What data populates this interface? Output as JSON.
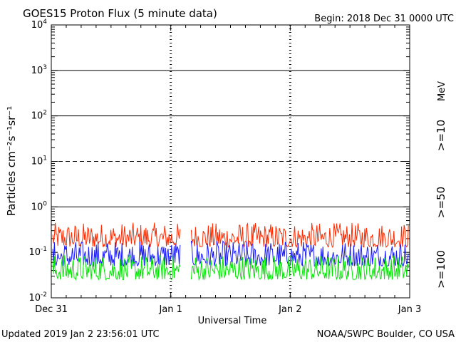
{
  "title": "GOES15 Proton Flux (5 minute data)",
  "begin_label": "Begin: 2018 Dec 31 0000 UTC",
  "updated_label": "Updated 2019 Jan  2 23:56:01 UTC",
  "credit_label": "NOAA/SWPC Boulder, CO USA",
  "colors": {
    "ge10": "#ff2a00",
    "ge50": "#1a1aff",
    "ge100": "#00e600",
    "axis": "#000000"
  },
  "chart_data": {
    "type": "line",
    "title": "GOES15 Proton Flux (5 minute data)",
    "xlabel": "Universal Time",
    "ylabel": "Particles cm⁻²s⁻¹sr⁻¹",
    "y_scale": "log",
    "ylim": [
      0.01,
      10000
    ],
    "y_ticks": [
      {
        "value": 0.01,
        "base": "10",
        "exp": "-2"
      },
      {
        "value": 0.1,
        "base": "10",
        "exp": "-1"
      },
      {
        "value": 1,
        "base": "10",
        "exp": "0"
      },
      {
        "value": 10,
        "base": "10",
        "exp": "1"
      },
      {
        "value": 100,
        "base": "10",
        "exp": "2"
      },
      {
        "value": 1000,
        "base": "10",
        "exp": "3"
      },
      {
        "value": 10000,
        "base": "10",
        "exp": "4"
      }
    ],
    "x_range": [
      "2018-12-31 00:00",
      "2019-01-03 00:00"
    ],
    "x_ticks": [
      "Dec 31",
      "Jan 1",
      "Jan 2",
      "Jan 3"
    ],
    "data_gap": [
      "2019-01-01 02:00",
      "2019-01-01 04:00"
    ],
    "reference_lines": [
      {
        "value": 1,
        "style": "solid"
      },
      {
        "value": 10,
        "style": "dashed"
      },
      {
        "value": 100,
        "style": "solid"
      },
      {
        "value": 1000,
        "style": "solid"
      }
    ],
    "legend_unit": "MeV",
    "legend_placement": "right, vertical",
    "series": [
      {
        "name": ">=10",
        "color": "#ff2a00",
        "typical_range": [
          0.13,
          0.45
        ]
      },
      {
        "name": ">=50",
        "color": "#1a1aff",
        "typical_range": [
          0.05,
          0.18
        ]
      },
      {
        "name": ">=100",
        "color": "#00e600",
        "typical_range": [
          0.025,
          0.09
        ]
      }
    ]
  }
}
